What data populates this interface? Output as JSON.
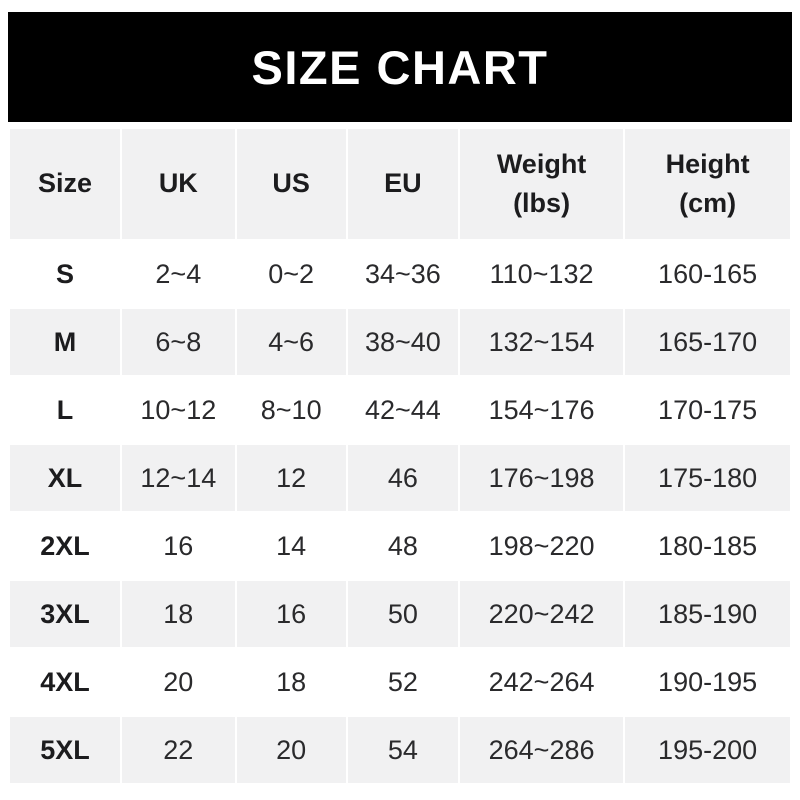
{
  "banner": {
    "title": "SIZE CHART"
  },
  "chart_data": {
    "type": "table",
    "title": "SIZE CHART",
    "columns": [
      "Size",
      "UK",
      "US",
      "EU",
      "Weight\n(lbs)",
      "Height\n(cm)"
    ],
    "rows": [
      [
        "S",
        "2~4",
        "0~2",
        "34~36",
        "110~132",
        "160-165"
      ],
      [
        "M",
        "6~8",
        "4~6",
        "38~40",
        "132~154",
        "165-170"
      ],
      [
        "L",
        "10~12",
        "8~10",
        "42~44",
        "154~176",
        "170-175"
      ],
      [
        "XL",
        "12~14",
        "12",
        "46",
        "176~198",
        "175-180"
      ],
      [
        "2XL",
        "16",
        "14",
        "48",
        "198~220",
        "180-185"
      ],
      [
        "3XL",
        "18",
        "16",
        "50",
        "220~242",
        "185-190"
      ],
      [
        "4XL",
        "20",
        "18",
        "52",
        "242~264",
        "190-195"
      ],
      [
        "5XL",
        "22",
        "20",
        "54",
        "264~286",
        "195-200"
      ]
    ],
    "layout": {
      "zebra_striping": true,
      "first_data_row_background": "white",
      "alternate_row_background": "light-gray"
    }
  },
  "colors": {
    "banner_bg": "#000000",
    "banner_text": "#ffffff",
    "row_alt": "#f1f1f2",
    "text": "#2a2a2c",
    "text_strong": "#1c1c1e"
  }
}
